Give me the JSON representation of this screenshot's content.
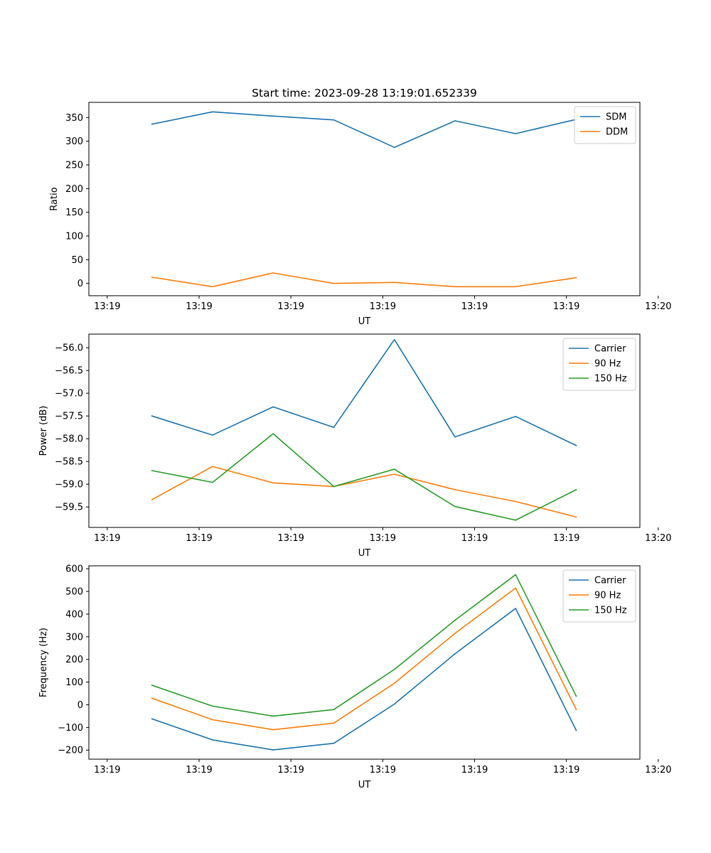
{
  "figure_title": "Start time: 2023-09-28 13:19:01.652339",
  "chart_data": [
    {
      "type": "line",
      "title": "Start time: 2023-09-28 13:19:01.652339",
      "xlabel": "UT",
      "ylabel": "Ratio",
      "xlim": [
        -0.3,
        8.7
      ],
      "ylim": [
        -26,
        382
      ],
      "x_ticks": [
        {
          "v": 0,
          "label": "13:19"
        },
        {
          "v": 1.5,
          "label": "13:19"
        },
        {
          "v": 3,
          "label": "13:19"
        },
        {
          "v": 4.5,
          "label": "13:19"
        },
        {
          "v": 6,
          "label": "13:19"
        },
        {
          "v": 7.5,
          "label": "13:19"
        },
        {
          "v": 9,
          "label": "13:20"
        }
      ],
      "y_ticks": [
        {
          "v": 0,
          "label": "0"
        },
        {
          "v": 50,
          "label": "50"
        },
        {
          "v": 100,
          "label": "100"
        },
        {
          "v": 150,
          "label": "150"
        },
        {
          "v": 200,
          "label": "200"
        },
        {
          "v": 250,
          "label": "250"
        },
        {
          "v": 300,
          "label": "300"
        },
        {
          "v": 350,
          "label": "350"
        }
      ],
      "legend_position": "top-right",
      "x": [
        0.73,
        1.72,
        2.71,
        3.7,
        4.69,
        5.68,
        6.67,
        7.66
      ],
      "series": [
        {
          "name": "SDM",
          "color": "#1f77b4",
          "values": [
            336,
            362,
            353,
            345,
            287,
            343,
            316,
            346
          ]
        },
        {
          "name": "DDM",
          "color": "#ff7f0e",
          "values": [
            13,
            -7,
            22,
            0,
            2,
            -7,
            -7,
            12
          ]
        }
      ]
    },
    {
      "type": "line",
      "title": "",
      "xlabel": "UT",
      "ylabel": "Power (dB)",
      "xlim": [
        -0.3,
        8.7
      ],
      "ylim": [
        -59.95,
        -55.7
      ],
      "x_ticks": [
        {
          "v": 0,
          "label": "13:19"
        },
        {
          "v": 1.5,
          "label": "13:19"
        },
        {
          "v": 3,
          "label": "13:19"
        },
        {
          "v": 4.5,
          "label": "13:19"
        },
        {
          "v": 6,
          "label": "13:19"
        },
        {
          "v": 7.5,
          "label": "13:19"
        },
        {
          "v": 9,
          "label": "13:20"
        }
      ],
      "y_ticks": [
        {
          "v": -59.5,
          "label": "−59.5"
        },
        {
          "v": -59.0,
          "label": "−59.0"
        },
        {
          "v": -58.5,
          "label": "−58.5"
        },
        {
          "v": -58.0,
          "label": "−58.0"
        },
        {
          "v": -57.5,
          "label": "−57.5"
        },
        {
          "v": -57.0,
          "label": "−57.0"
        },
        {
          "v": -56.5,
          "label": "−56.5"
        },
        {
          "v": -56.0,
          "label": "−56.0"
        }
      ],
      "legend_position": "top-right",
      "x": [
        0.73,
        1.72,
        2.71,
        3.7,
        4.69,
        5.68,
        6.67,
        7.66
      ],
      "series": [
        {
          "name": "Carrier",
          "color": "#1f77b4",
          "values": [
            -57.5,
            -57.92,
            -57.3,
            -57.75,
            -55.82,
            -57.96,
            -57.51,
            -58.15
          ]
        },
        {
          "name": "90 Hz",
          "color": "#ff7f0e",
          "values": [
            -59.34,
            -58.61,
            -58.97,
            -59.05,
            -58.78,
            -59.12,
            -59.38,
            -59.72
          ]
        },
        {
          "name": "150 Hz",
          "color": "#2ca02c",
          "values": [
            -58.7,
            -58.96,
            -57.89,
            -59.05,
            -58.67,
            -59.49,
            -59.79,
            -59.12
          ]
        }
      ]
    },
    {
      "type": "line",
      "title": "",
      "xlabel": "UT",
      "ylabel": "Frequency (Hz)",
      "xlim": [
        -0.3,
        8.7
      ],
      "ylim": [
        -240,
        613
      ],
      "x_ticks": [
        {
          "v": 0,
          "label": "13:19"
        },
        {
          "v": 1.5,
          "label": "13:19"
        },
        {
          "v": 3,
          "label": "13:19"
        },
        {
          "v": 4.5,
          "label": "13:19"
        },
        {
          "v": 6,
          "label": "13:19"
        },
        {
          "v": 7.5,
          "label": "13:19"
        },
        {
          "v": 9,
          "label": "13:20"
        }
      ],
      "y_ticks": [
        {
          "v": -200,
          "label": "−200"
        },
        {
          "v": -100,
          "label": "−100"
        },
        {
          "v": 0,
          "label": "0"
        },
        {
          "v": 100,
          "label": "100"
        },
        {
          "v": 200,
          "label": "200"
        },
        {
          "v": 300,
          "label": "300"
        },
        {
          "v": 400,
          "label": "400"
        },
        {
          "v": 500,
          "label": "500"
        },
        {
          "v": 600,
          "label": "600"
        }
      ],
      "legend_position": "top-right",
      "x": [
        0.73,
        1.72,
        2.71,
        3.7,
        4.69,
        5.68,
        6.67,
        7.66
      ],
      "series": [
        {
          "name": "Carrier",
          "color": "#1f77b4",
          "values": [
            -62,
            -155,
            -199,
            -170,
            3,
            225,
            425,
            -113
          ]
        },
        {
          "name": "90 Hz",
          "color": "#ff7f0e",
          "values": [
            29,
            -66,
            -110,
            -81,
            95,
            315,
            515,
            -21
          ]
        },
        {
          "name": "150 Hz",
          "color": "#2ca02c",
          "values": [
            86,
            -6,
            -50,
            -21,
            156,
            373,
            574,
            38
          ]
        }
      ]
    }
  ]
}
